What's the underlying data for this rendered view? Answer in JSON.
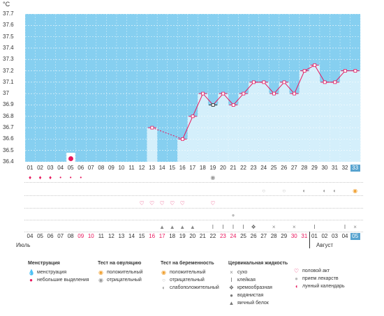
{
  "chart_data": {
    "type": "line",
    "unit": "°C",
    "ylim": [
      36.4,
      37.7
    ],
    "y_ticks": [
      "37.7",
      "37.6",
      "37.5",
      "37.4",
      "37.3",
      "37.2",
      "37.1",
      "37",
      "36.9",
      "36.8",
      "36.7",
      "36.6",
      "36.5",
      "36.4"
    ],
    "cycle_days": [
      "01",
      "02",
      "03",
      "04",
      "05",
      "06",
      "07",
      "08",
      "09",
      "10",
      "11",
      "12",
      "13",
      "14",
      "15",
      "16",
      "17",
      "18",
      "19",
      "20",
      "21",
      "22",
      "23",
      "24",
      "25",
      "26",
      "27",
      "28",
      "29",
      "30",
      "31",
      "32",
      "33"
    ],
    "current_cycle_day": "33",
    "temperatures": [
      {
        "day": 13,
        "value": 36.7
      },
      {
        "day": 16,
        "value": 36.6
      },
      {
        "day": 17,
        "value": 36.8
      },
      {
        "day": 18,
        "value": 37.0
      },
      {
        "day": 19,
        "value": 36.9
      },
      {
        "day": 20,
        "value": 37.0
      },
      {
        "day": 21,
        "value": 36.9
      },
      {
        "day": 22,
        "value": 37.0
      },
      {
        "day": 23,
        "value": 37.1
      },
      {
        "day": 24,
        "value": 37.1
      },
      {
        "day": 25,
        "value": 37.0
      },
      {
        "day": 26,
        "value": 37.1
      },
      {
        "day": 27,
        "value": 37.0
      },
      {
        "day": 28,
        "value": 37.2
      },
      {
        "day": 29,
        "value": 37.25
      },
      {
        "day": 30,
        "value": 37.1
      },
      {
        "day": 31,
        "value": 37.1
      },
      {
        "day": 32,
        "value": 37.2
      },
      {
        "day": 33,
        "value": 37.2
      }
    ],
    "dashed_segment": [
      13,
      16
    ],
    "selected_day": 19,
    "moon_day": 5,
    "grid": true
  },
  "calendar": {
    "dates": [
      "04",
      "05",
      "06",
      "07",
      "08",
      "09",
      "10",
      "11",
      "12",
      "13",
      "14",
      "15",
      "16",
      "17",
      "18",
      "19",
      "20",
      "21",
      "22",
      "23",
      "24",
      "25",
      "26",
      "27",
      "28",
      "29",
      "30",
      "31",
      "01",
      "02",
      "03",
      "04",
      "05"
    ],
    "weekend_indices": [
      5,
      6,
      12,
      13,
      19,
      20,
      26,
      27
    ],
    "current_index": 32,
    "month_july": "Июль",
    "month_august": "Август"
  },
  "rows": {
    "menstruation": {
      "heavy_days": [
        1,
        2,
        3
      ],
      "light_days": [
        4,
        5,
        6
      ]
    },
    "ovulation_test": {
      "negative_days": [
        19
      ]
    },
    "pregnancy_test": {
      "negative_days": [
        24,
        26
      ],
      "weak_days": [
        28,
        30,
        31
      ],
      "positive_days": [
        33
      ]
    },
    "intercourse_days": [
      12,
      13,
      14,
      15,
      16,
      19
    ],
    "medication_days": [
      21
    ],
    "cervical_fluid": {
      "egg_white_days": [
        14,
        15,
        16,
        17
      ],
      "sticky_days": [
        19,
        20,
        21,
        22,
        29,
        32
      ],
      "creamy_days": [
        23
      ],
      "dry_days": [
        25,
        27,
        33
      ]
    }
  },
  "legend": {
    "menstruation": {
      "title": "Менструация",
      "items": [
        "менструация",
        "небольшие выделения"
      ]
    },
    "ovulation": {
      "title": "Тест на овуляцию",
      "items": [
        "положительный",
        "отрицательный"
      ]
    },
    "pregnancy": {
      "title": "Тест на беременность",
      "items": [
        "положительный",
        "отрицательный",
        "слабоположительный"
      ]
    },
    "cervical": {
      "title": "Цервикальная жидкость",
      "items": [
        "сухо",
        "клейкая",
        "кремообразная",
        "водянистая",
        "яичный белок"
      ]
    },
    "other": {
      "items": [
        "половой акт",
        "прием лекарств",
        "лунный календарь"
      ]
    }
  },
  "colors": {
    "bg_sky": "#86cff0",
    "fill_light": "#d4effb",
    "line": "#e8175d",
    "accent": "#57a3cf",
    "weekend": "#e8175d"
  }
}
